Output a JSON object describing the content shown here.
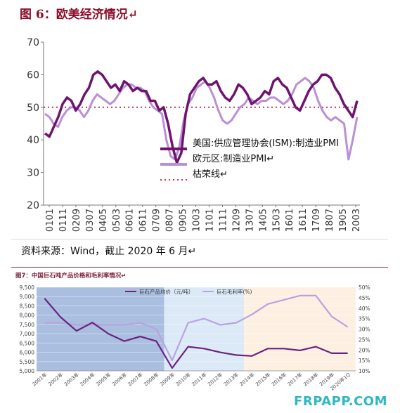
{
  "top_chart_title": "图 6：欧美经济情况↵",
  "source_text": "资料来源：Wind，截止 2020 年 6 月↵",
  "bottom_chart_title": "图7：中国巨石吨产品价格和毛利率情况↵",
  "watermark": "FRPAPP.COM",
  "colors": {
    "ism": "#6E1470",
    "eu": "#B98FD6",
    "gdp_line": "#C0354A",
    "bottom_price": "#6A2380",
    "bottom_margin": "#B9A2E0",
    "band1": "#8EA9D6",
    "band2": "#DCEAF7",
    "band3": "#FDF0E2"
  },
  "chart_data": [
    {
      "type": "line",
      "title": "图 6：欧美经济情况",
      "ylim": [
        20,
        70
      ],
      "yticks": [
        "20",
        "30",
        "40",
        "50",
        "60",
        "70"
      ],
      "xticks": [
        "0101",
        "0111",
        "0209",
        "0307",
        "0405",
        "0503",
        "0601",
        "0611",
        "0709",
        "0807",
        "0905",
        "1003",
        "1101",
        "1111",
        "1209",
        "1307",
        "1405",
        "1503",
        "1601",
        "1611",
        "1709",
        "1807",
        "1905",
        "2003"
      ],
      "legend": {
        "position": "center-right",
        "entries": [
          "美国:供应管理协会(ISM):制造业PMI",
          "欧元区:制造业PMI↵",
          "枯荣线↵",
          ""
        ]
      },
      "reference_line": {
        "y": 50
      },
      "series": [
        {
          "name": "美国:供应管理协会(ISM):制造业PMI",
          "values": [
            42,
            41,
            44,
            47,
            51,
            53,
            52,
            49,
            51,
            54,
            56,
            60,
            61,
            60,
            58,
            56,
            57,
            55,
            58,
            57,
            55,
            56,
            55,
            55,
            52,
            52,
            49,
            50,
            45,
            38,
            33,
            36,
            48,
            54,
            56,
            58,
            59,
            57,
            57,
            58,
            55,
            53,
            52,
            54,
            57,
            56,
            54,
            51,
            52,
            53,
            55,
            54,
            58,
            59,
            57,
            56,
            53,
            50,
            49,
            52,
            55,
            57,
            58,
            60,
            60,
            59,
            56,
            54,
            51,
            49,
            47,
            52
          ],
          "x_start": "2001-01",
          "x_end": "2020-06"
        },
        {
          "name": "欧元区:制造业PMI↵",
          "values": [
            48,
            47,
            45,
            44,
            47,
            49,
            50,
            50,
            49,
            47,
            49,
            52,
            54,
            53,
            52,
            51,
            52,
            54,
            56,
            57,
            57,
            56,
            56,
            55,
            52,
            50,
            49,
            48,
            40,
            35,
            34,
            38,
            46,
            51,
            53,
            56,
            57,
            58,
            56,
            53,
            49,
            46,
            45,
            46,
            48,
            50,
            51,
            53,
            52,
            51,
            52,
            52,
            53,
            53,
            52,
            51,
            52,
            54,
            57,
            58,
            59,
            58,
            56,
            52,
            49,
            47,
            46,
            47,
            46,
            45,
            34,
            40,
            47
          ],
          "x_start": "2001-01",
          "x_end": "2020-06"
        }
      ]
    },
    {
      "type": "line",
      "title": "图7：中国巨石吨产品价格和毛利率情况",
      "categories": [
        "2001年",
        "2002年",
        "2003年",
        "2004年",
        "2005年",
        "2006年",
        "2007年",
        "2008年",
        "2009年",
        "2010年",
        "2011年",
        "2012年",
        "2013年",
        "2014年",
        "2015年",
        "2016年",
        "2017年",
        "2018年",
        "2019年",
        "2020年1Q"
      ],
      "y_left": {
        "lim": [
          5000,
          9500
        ],
        "ticks": [
          "5,000",
          "5,500",
          "6,000",
          "6,500",
          "7,000",
          "7,500",
          "8,000",
          "8,500",
          "9,000",
          "9,500"
        ]
      },
      "y_right": {
        "lim": [
          10,
          50
        ],
        "ticks": [
          "10%",
          "15%",
          "20%",
          "25%",
          "30%",
          "35%",
          "40%",
          "45%",
          "50%"
        ]
      },
      "legend": {
        "position": "top-center",
        "entries": [
          "巨石产品均价（元/吨）",
          "巨石毛利率(%)"
        ]
      },
      "series": [
        {
          "name": "巨石产品均价（元/吨）",
          "axis": "left",
          "values": [
            8900,
            7900,
            7150,
            7600,
            7000,
            6600,
            6850,
            6600,
            5150,
            6300,
            6200,
            6000,
            5850,
            5800,
            6200,
            6200,
            6100,
            6300,
            5950,
            5950
          ]
        },
        {
          "name": "巨石毛利率(%)",
          "axis": "right",
          "values": [
            33,
            33,
            32,
            32,
            32,
            32,
            33,
            30,
            15,
            33,
            35,
            32,
            33,
            37,
            42,
            44,
            46,
            46,
            36,
            31
          ]
        }
      ]
    }
  ]
}
